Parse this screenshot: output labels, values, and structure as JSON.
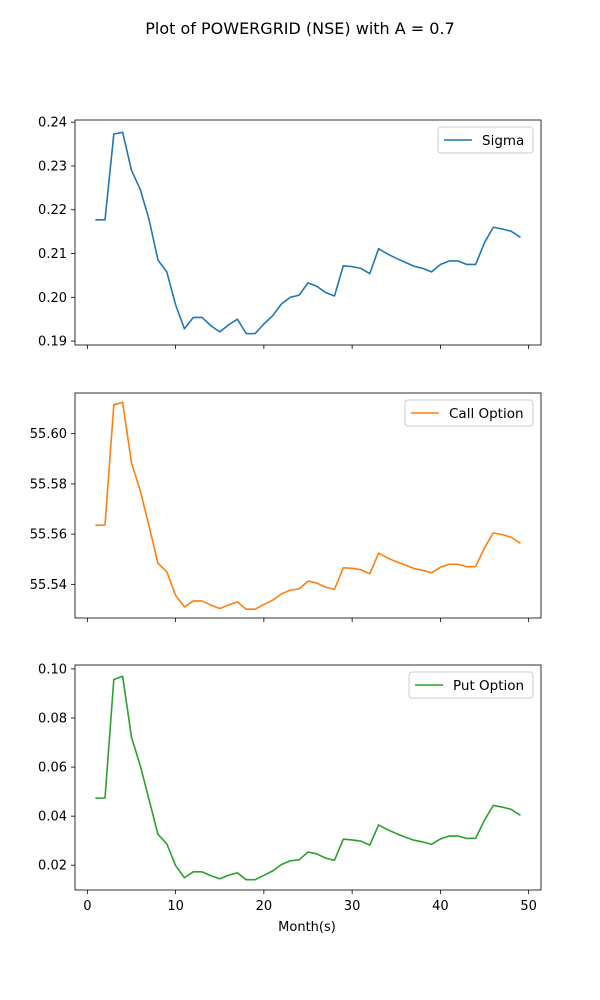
{
  "figure": {
    "title": "Plot of POWERGRID (NSE) with A = 0.7",
    "xlabel": "Month(s)"
  },
  "chart_data": [
    {
      "type": "line",
      "title": "",
      "xlabel": "",
      "ylabel": "",
      "legend_position": "top-right",
      "color": "#1f77b4",
      "xlim": [
        -1.4,
        51.4
      ],
      "ylim": [
        0.1891,
        0.2405
      ],
      "xticks": [
        0,
        10,
        20,
        30,
        40,
        50
      ],
      "xtick_labels": [],
      "yticks": [
        0.19,
        0.2,
        0.21,
        0.22,
        0.23,
        0.24
      ],
      "ytick_labels": [
        "0.19",
        "0.20",
        "0.21",
        "0.22",
        "0.23",
        "0.24"
      ],
      "series": [
        {
          "name": "Sigma",
          "x": [
            1,
            2,
            3,
            4,
            5,
            6,
            7,
            8,
            9,
            10,
            11,
            12,
            13,
            14,
            15,
            16,
            17,
            18,
            19,
            20,
            21,
            22,
            23,
            24,
            25,
            26,
            27,
            28,
            29,
            30,
            31,
            32,
            33,
            34,
            35,
            36,
            37,
            38,
            39,
            40,
            41,
            42,
            43,
            44,
            45,
            46,
            47,
            48,
            49
          ],
          "values": [
            0.2177,
            0.2177,
            0.2373,
            0.2377,
            0.229,
            0.2246,
            0.2177,
            0.2085,
            0.2058,
            0.1983,
            0.1928,
            0.1954,
            0.1954,
            0.1935,
            0.1921,
            0.1937,
            0.195,
            0.1917,
            0.1917,
            0.1939,
            0.1958,
            0.1985,
            0.2,
            0.2005,
            0.2033,
            0.2025,
            0.2011,
            0.2003,
            0.2072,
            0.207,
            0.2066,
            0.2054,
            0.2111,
            0.2099,
            0.2089,
            0.208,
            0.2071,
            0.2066,
            0.2058,
            0.2075,
            0.2083,
            0.2083,
            0.2075,
            0.2075,
            0.2125,
            0.216,
            0.2156,
            0.2151,
            0.2138
          ]
        }
      ]
    },
    {
      "type": "line",
      "title": "",
      "xlabel": "",
      "ylabel": "",
      "legend_position": "top-right",
      "color": "#ff7f0e",
      "xlim": [
        -1.4,
        51.4
      ],
      "ylim": [
        55.5266,
        55.6162
      ],
      "xticks": [
        0,
        10,
        20,
        30,
        40,
        50
      ],
      "xtick_labels": [],
      "yticks": [
        55.54,
        55.56,
        55.58,
        55.6
      ],
      "ytick_labels": [
        "55.54",
        "55.56",
        "55.58",
        "55.60"
      ],
      "series": [
        {
          "name": "Call Option",
          "x": [
            1,
            2,
            3,
            4,
            5,
            6,
            7,
            8,
            9,
            10,
            11,
            12,
            13,
            14,
            15,
            16,
            17,
            18,
            19,
            20,
            21,
            22,
            23,
            24,
            25,
            26,
            27,
            28,
            29,
            30,
            31,
            32,
            33,
            34,
            35,
            36,
            37,
            38,
            39,
            40,
            41,
            42,
            43,
            44,
            45,
            46,
            47,
            48,
            49
          ],
          "values": [
            55.5635,
            55.5636,
            55.6115,
            55.6125,
            55.5884,
            55.5773,
            55.563,
            55.5484,
            55.545,
            55.5356,
            55.531,
            55.5334,
            55.5334,
            55.5317,
            55.5304,
            55.5318,
            55.533,
            55.5301,
            55.5301,
            55.532,
            55.5337,
            55.5362,
            55.5377,
            55.5382,
            55.5413,
            55.5405,
            55.5389,
            55.538,
            55.5466,
            55.5464,
            55.5458,
            55.5442,
            55.5524,
            55.5505,
            55.549,
            55.5477,
            55.5463,
            55.5456,
            55.5446,
            55.5468,
            55.548,
            55.548,
            55.547,
            55.5471,
            55.5546,
            55.5605,
            55.5598,
            55.5588,
            55.5565
          ]
        }
      ]
    },
    {
      "type": "line",
      "title": "",
      "xlabel": "Month(s)",
      "ylabel": "",
      "legend_position": "top-right",
      "color": "#2ca02c",
      "xlim": [
        -1.4,
        51.4
      ],
      "ylim": [
        0.0099,
        0.1016
      ],
      "xticks": [
        0,
        10,
        20,
        30,
        40,
        50
      ],
      "xtick_labels": [
        "0",
        "10",
        "20",
        "30",
        "40",
        "50"
      ],
      "yticks": [
        0.02,
        0.04,
        0.06,
        0.08,
        0.1
      ],
      "ytick_labels": [
        "0.02",
        "0.04",
        "0.06",
        "0.08",
        "0.10"
      ],
      "series": [
        {
          "name": "Put Option",
          "x": [
            1,
            2,
            3,
            4,
            5,
            6,
            7,
            8,
            9,
            10,
            11,
            12,
            13,
            14,
            15,
            16,
            17,
            18,
            19,
            20,
            21,
            22,
            23,
            24,
            25,
            26,
            27,
            28,
            29,
            30,
            31,
            32,
            33,
            34,
            35,
            36,
            37,
            38,
            39,
            40,
            41,
            42,
            43,
            44,
            45,
            46,
            47,
            48,
            49
          ],
          "values": [
            0.0473,
            0.0474,
            0.0957,
            0.097,
            0.0722,
            0.0605,
            0.0466,
            0.0326,
            0.0287,
            0.0198,
            0.0149,
            0.0173,
            0.0173,
            0.0157,
            0.0145,
            0.0159,
            0.0169,
            0.0141,
            0.0141,
            0.0159,
            0.0177,
            0.0203,
            0.0218,
            0.0222,
            0.0254,
            0.0246,
            0.0229,
            0.022,
            0.0306,
            0.0303,
            0.0298,
            0.0282,
            0.0364,
            0.0345,
            0.0329,
            0.0315,
            0.0302,
            0.0295,
            0.0285,
            0.0307,
            0.0319,
            0.0319,
            0.0309,
            0.031,
            0.0384,
            0.0444,
            0.0437,
            0.0428,
            0.0405
          ]
        }
      ]
    }
  ]
}
